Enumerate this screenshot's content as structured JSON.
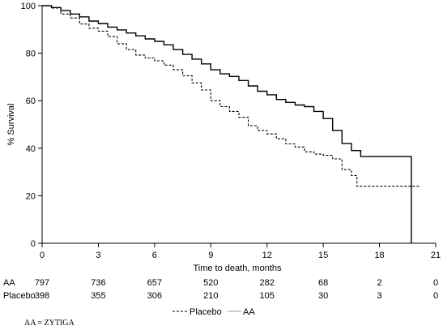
{
  "chart_data": {
    "type": "line",
    "subtype": "kaplan-meier",
    "title": "",
    "xlabel": "Time to death, months",
    "ylabel": "% Survival",
    "xlim": [
      0,
      21
    ],
    "ylim": [
      0,
      100
    ],
    "xticks": [
      0,
      3,
      6,
      9,
      12,
      15,
      18,
      21
    ],
    "yticks": [
      0,
      20,
      40,
      60,
      80,
      100
    ],
    "grid": false,
    "legend_position": "bottom-center",
    "legend": [
      "Placebo",
      "AA"
    ],
    "series": [
      {
        "name": "AA",
        "style": "solid",
        "color": "#000000",
        "points": [
          [
            0,
            100
          ],
          [
            0.5,
            99.2
          ],
          [
            1,
            98
          ],
          [
            1.5,
            96.5
          ],
          [
            2,
            95.3
          ],
          [
            2.5,
            93.5
          ],
          [
            3,
            92.5
          ],
          [
            3.5,
            91
          ],
          [
            4,
            89.8
          ],
          [
            4.5,
            88.5
          ],
          [
            5,
            87.3
          ],
          [
            5.5,
            86
          ],
          [
            6,
            85
          ],
          [
            6.5,
            83.5
          ],
          [
            7,
            81.5
          ],
          [
            7.5,
            79.5
          ],
          [
            8,
            77.5
          ],
          [
            8.5,
            75.5
          ],
          [
            9,
            73
          ],
          [
            9.5,
            71.3
          ],
          [
            10,
            70.2
          ],
          [
            10.5,
            68.5
          ],
          [
            11,
            66.2
          ],
          [
            11.5,
            64
          ],
          [
            12,
            62.5
          ],
          [
            12.5,
            60.5
          ],
          [
            13,
            59.3
          ],
          [
            13.5,
            58.2
          ],
          [
            14,
            57.5
          ],
          [
            14.5,
            55.5
          ],
          [
            15,
            52.5
          ],
          [
            15.5,
            47.5
          ],
          [
            16,
            42
          ],
          [
            16.5,
            39
          ],
          [
            17,
            36.5
          ],
          [
            19.7,
            36.5
          ],
          [
            19.7,
            0
          ]
        ]
      },
      {
        "name": "Placebo",
        "style": "dashed",
        "color": "#000000",
        "points": [
          [
            0,
            100
          ],
          [
            0.5,
            99
          ],
          [
            1,
            96.5
          ],
          [
            1.5,
            94.8
          ],
          [
            2,
            92.3
          ],
          [
            2.5,
            90.5
          ],
          [
            3,
            89.3
          ],
          [
            3.5,
            87
          ],
          [
            4,
            84
          ],
          [
            4.5,
            81.5
          ],
          [
            5,
            79.2
          ],
          [
            5.5,
            78
          ],
          [
            6,
            76.8
          ],
          [
            6.5,
            75
          ],
          [
            7,
            73
          ],
          [
            7.5,
            70.5
          ],
          [
            8,
            67.5
          ],
          [
            8.5,
            64.5
          ],
          [
            9,
            60
          ],
          [
            9.5,
            57.5
          ],
          [
            10,
            55.5
          ],
          [
            10.5,
            53
          ],
          [
            11,
            49.5
          ],
          [
            11.5,
            47.5
          ],
          [
            12,
            46
          ],
          [
            12.5,
            44
          ],
          [
            13,
            41.8
          ],
          [
            13.5,
            40.5
          ],
          [
            14,
            38.5
          ],
          [
            14.5,
            37.5
          ],
          [
            15,
            37
          ],
          [
            15.5,
            35.5
          ],
          [
            16,
            31
          ],
          [
            16.5,
            28.5
          ],
          [
            16.8,
            24
          ],
          [
            20.2,
            24
          ]
        ]
      }
    ],
    "risk_table": {
      "times": [
        0,
        3,
        6,
        9,
        12,
        15,
        18,
        21
      ],
      "rows": [
        {
          "label": "AA",
          "values": [
            797,
            736,
            657,
            520,
            282,
            68,
            2,
            0
          ]
        },
        {
          "label": "Placebo",
          "values": [
            398,
            355,
            306,
            210,
            105,
            30,
            3,
            0
          ]
        }
      ]
    }
  },
  "footnote": "AA = ZYTIGA"
}
